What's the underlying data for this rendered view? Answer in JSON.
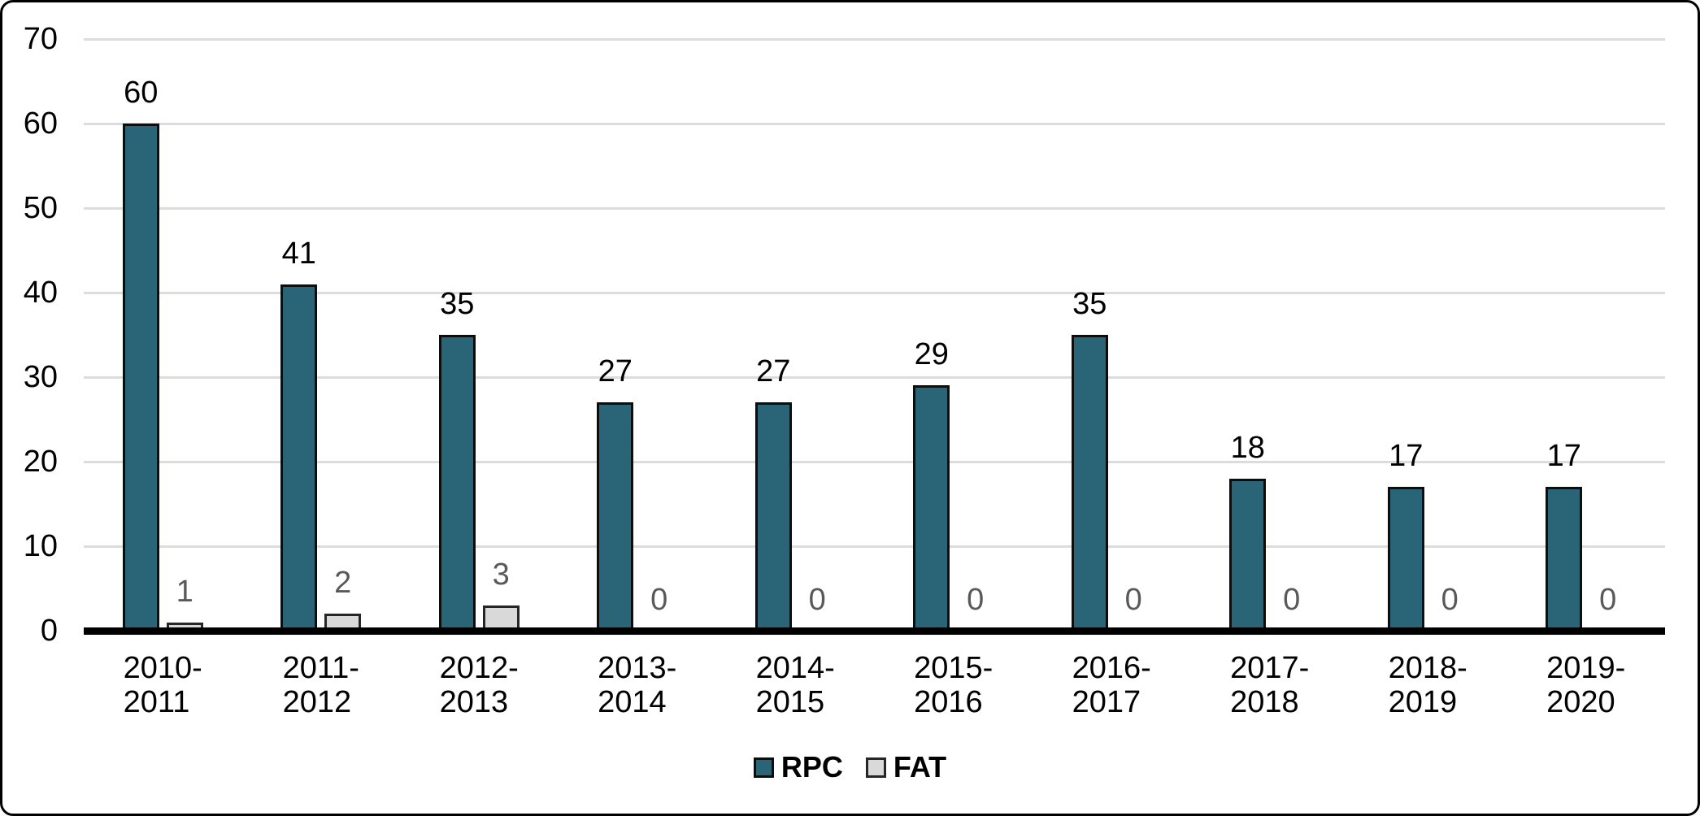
{
  "chart_data": {
    "type": "bar",
    "title": "",
    "xlabel": "",
    "ylabel": "",
    "categories": [
      "2010-2011",
      "2011-2012",
      "2012-2013",
      "2013-2014",
      "2014-2015",
      "2015-2016",
      "2016-2017",
      "2017-2018",
      "2018-2019",
      "2019-2020"
    ],
    "series": [
      {
        "name": "RPC",
        "values": [
          60,
          41,
          35,
          27,
          27,
          29,
          35,
          18,
          17,
          17
        ],
        "color": "#2A6577",
        "border_color": "#0d0d0d",
        "label_color": "#000000"
      },
      {
        "name": "FAT",
        "values": [
          1,
          2,
          3,
          0,
          0,
          0,
          0,
          0,
          0,
          0
        ],
        "color": "#D9D9D9",
        "border_color": "#262626",
        "label_color": "#595959"
      }
    ],
    "yticks": [
      0,
      10,
      20,
      30,
      40,
      50,
      60,
      70
    ],
    "ylim": [
      0,
      70
    ],
    "grid": true,
    "gridline_color": "#DCDCDC",
    "axis_line_color": "#000000",
    "data_labels": true,
    "legend_position": "bottom"
  }
}
